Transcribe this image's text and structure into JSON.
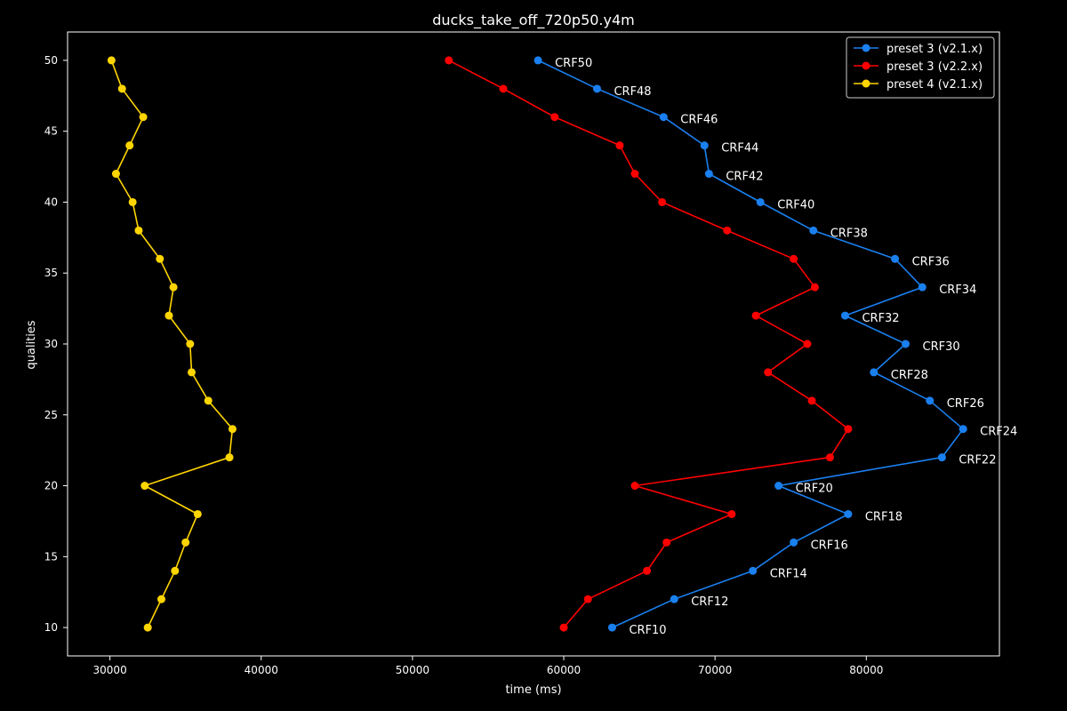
{
  "chart_data": {
    "type": "line",
    "title": "ducks_take_off_720p50.y4m",
    "xlabel": "time (ms)",
    "ylabel": "qualities",
    "xlim": [
      27200,
      88800
    ],
    "ylim": [
      8,
      52
    ],
    "xticks": [
      30000,
      40000,
      50000,
      60000,
      70000,
      80000
    ],
    "yticks": [
      10,
      15,
      20,
      25,
      30,
      35,
      40,
      45,
      50
    ],
    "grid": false,
    "legend_position": "top-right",
    "y": [
      50,
      48,
      46,
      44,
      42,
      40,
      38,
      36,
      34,
      32,
      30,
      28,
      26,
      24,
      22,
      20,
      18,
      16,
      14,
      12,
      10
    ],
    "series": [
      {
        "name": "preset 3 (v2.1.x)",
        "color": "#1a80f0",
        "x": [
          58300,
          62200,
          66600,
          69300,
          69600,
          73000,
          76500,
          81900,
          83700,
          78600,
          82600,
          80500,
          84200,
          86400,
          85000,
          74200,
          78800,
          75200,
          72500,
          67300,
          63200
        ],
        "point_labels": [
          "CRF50",
          "CRF48",
          "CRF46",
          "CRF44",
          "CRF42",
          "CRF40",
          "CRF38",
          "CRF36",
          "CRF34",
          "CRF32",
          "CRF30",
          "CRF28",
          "CRF26",
          "CRF24",
          "CRF22",
          "CRF20",
          "CRF18",
          "CRF16",
          "CRF14",
          "CRF12",
          "CRF10"
        ]
      },
      {
        "name": "preset 3 (v2.2.x)",
        "color": "#ff0000",
        "x": [
          52400,
          56000,
          59400,
          63700,
          64700,
          66500,
          70800,
          75200,
          76600,
          72700,
          76100,
          73500,
          76400,
          78800,
          77600,
          64700,
          71100,
          66800,
          65500,
          61600,
          60000
        ]
      },
      {
        "name": "preset 4 (v2.1.x)",
        "color": "#ffd500",
        "x": [
          30100,
          30800,
          32200,
          31300,
          30400,
          31500,
          31900,
          33300,
          34200,
          33900,
          35300,
          35400,
          36500,
          38100,
          37900,
          32300,
          35800,
          35000,
          34300,
          33400,
          32500
        ]
      }
    ]
  }
}
